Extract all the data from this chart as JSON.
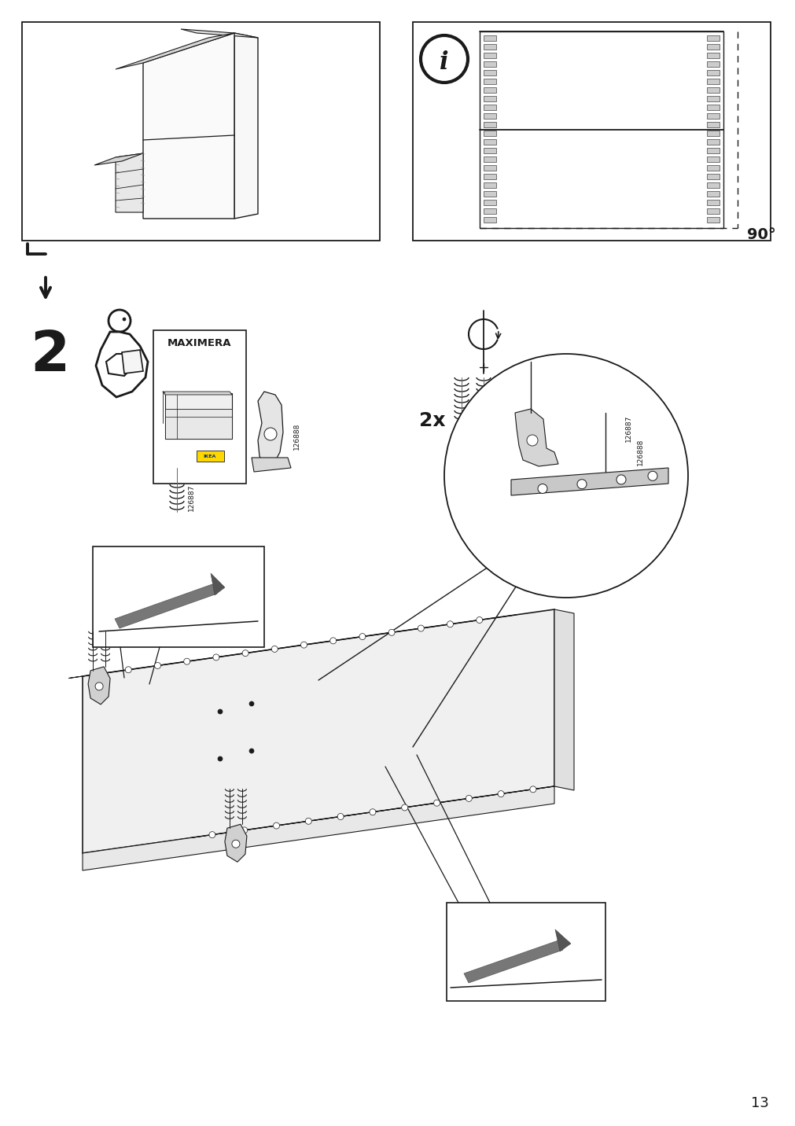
{
  "page_number": "13",
  "background_color": "#ffffff",
  "line_color": "#1a1a1a",
  "step_number": "2",
  "part_numbers": [
    "126887",
    "126888"
  ],
  "quantity_label": "2x",
  "angle_label": "90°",
  "product_name": "MAXIMERA",
  "figsize": [
    10.12,
    14.32
  ],
  "dpi": 100
}
